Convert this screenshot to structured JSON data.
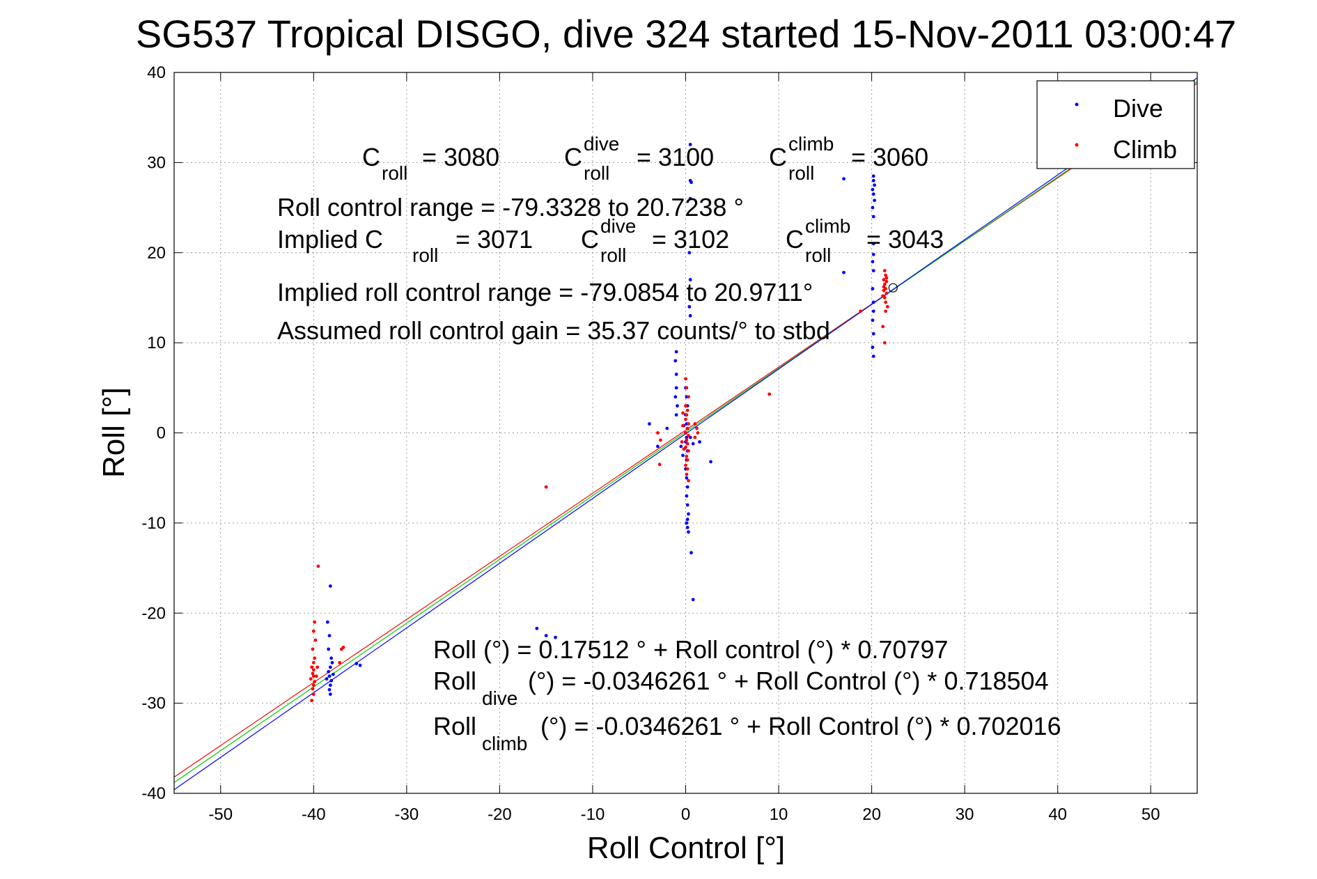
{
  "chart_data": {
    "type": "scatter",
    "title": "SG537 Tropical DISGO, dive 324 started 15-Nov-2011 03:00:47",
    "xlabel": "Roll Control [°]",
    "ylabel": "Roll [°]",
    "xlim": [
      -55,
      55
    ],
    "ylim": [
      -40,
      40
    ],
    "xticks": [
      -50,
      -40,
      -30,
      -20,
      -10,
      0,
      10,
      20,
      30,
      40,
      50
    ],
    "yticks": [
      -40,
      -30,
      -20,
      -10,
      0,
      10,
      20,
      30,
      40
    ],
    "grid": true,
    "legend_position": "top-right",
    "legend": [
      {
        "label": "Dive",
        "color": "#0000ff"
      },
      {
        "label": "Climb",
        "color": "#ff0000"
      }
    ],
    "series": [
      {
        "name": "Dive",
        "color": "#0000ff",
        "points": [
          [
            -38.2,
            -17
          ],
          [
            -38.5,
            -21
          ],
          [
            -38.3,
            -22.5
          ],
          [
            -38.4,
            -24
          ],
          [
            -38.1,
            -25
          ],
          [
            -38.0,
            -25.5
          ],
          [
            -38.2,
            -26
          ],
          [
            -38.4,
            -26.5
          ],
          [
            -38.3,
            -27
          ],
          [
            -38.1,
            -27.5
          ],
          [
            -38.2,
            -28
          ],
          [
            -38.3,
            -28.5
          ],
          [
            -38.2,
            -29
          ],
          [
            -37.9,
            -26.8
          ],
          [
            -38.6,
            -27.3
          ],
          [
            -35.4,
            -25.6
          ],
          [
            -35.0,
            -25.8
          ],
          [
            -16.0,
            -21.7
          ],
          [
            -15.0,
            -22.5
          ],
          [
            -14.0,
            -22.7
          ],
          [
            -3.9,
            1.0
          ],
          [
            -3.0,
            -1.5
          ],
          [
            -2.0,
            0.5
          ],
          [
            2.7,
            -3.2
          ],
          [
            1.5,
            -1.0
          ],
          [
            0.5,
            32
          ],
          [
            0.5,
            28
          ],
          [
            0.6,
            27.8
          ],
          [
            0.5,
            26
          ],
          [
            0.4,
            20
          ],
          [
            0.5,
            17
          ],
          [
            0.4,
            14
          ],
          [
            0.5,
            13
          ],
          [
            -1.0,
            9
          ],
          [
            -1.1,
            8
          ],
          [
            -1.0,
            6.5
          ],
          [
            -1.0,
            5
          ],
          [
            -1.1,
            4
          ],
          [
            -0.9,
            3
          ],
          [
            -1.0,
            2
          ],
          [
            0.0,
            5
          ],
          [
            0.1,
            4
          ],
          [
            0.2,
            3
          ],
          [
            0.0,
            2
          ],
          [
            0.1,
            1
          ],
          [
            0.0,
            0
          ],
          [
            0.1,
            -0.5
          ],
          [
            0.0,
            -1
          ],
          [
            0.2,
            -2
          ],
          [
            0.1,
            -3
          ],
          [
            0.0,
            -4
          ],
          [
            0.1,
            -5
          ],
          [
            0.2,
            -6
          ],
          [
            0.1,
            -7
          ],
          [
            0.2,
            -8
          ],
          [
            0.3,
            -9
          ],
          [
            0.2,
            -9.6
          ],
          [
            0.1,
            -10
          ],
          [
            0.2,
            -10.5
          ],
          [
            0.3,
            -11
          ],
          [
            0.6,
            -13.3
          ],
          [
            0.8,
            -18.5
          ],
          [
            -0.5,
            -1.5
          ],
          [
            -0.3,
            -2.5
          ],
          [
            0.5,
            -0.5
          ],
          [
            0.8,
            -1.2
          ],
          [
            -0.2,
            0.8
          ],
          [
            17.0,
            28.2
          ],
          [
            17.0,
            17.8
          ],
          [
            20.2,
            28.5
          ],
          [
            20.2,
            28
          ],
          [
            20.3,
            27.5
          ],
          [
            20.1,
            27
          ],
          [
            20.2,
            26.5
          ],
          [
            20.3,
            25.8
          ],
          [
            20.1,
            25
          ],
          [
            20.2,
            24
          ],
          [
            20.2,
            21
          ],
          [
            20.2,
            19.8
          ],
          [
            20.1,
            19
          ],
          [
            20.2,
            18
          ],
          [
            20.1,
            16
          ],
          [
            20.2,
            14.5
          ],
          [
            20.2,
            13.5
          ],
          [
            20.1,
            12.5
          ],
          [
            20.2,
            11
          ],
          [
            20.1,
            9.5
          ],
          [
            20.2,
            8.5
          ]
        ]
      },
      {
        "name": "Climb",
        "color": "#ff0000",
        "points": [
          [
            -39.5,
            -14.8
          ],
          [
            -39.9,
            -21
          ],
          [
            -40.0,
            -22
          ],
          [
            -39.8,
            -23
          ],
          [
            -40.1,
            -24
          ],
          [
            -39.9,
            -25
          ],
          [
            -40.0,
            -25.5
          ],
          [
            -40.2,
            -26
          ],
          [
            -40.0,
            -26.3
          ],
          [
            -40.1,
            -26.7
          ],
          [
            -40.0,
            -27
          ],
          [
            -40.3,
            -27.3
          ],
          [
            -39.9,
            -27.6
          ],
          [
            -40.0,
            -28
          ],
          [
            -40.1,
            -28.4
          ],
          [
            -40.0,
            -29
          ],
          [
            -40.2,
            -29.7
          ],
          [
            -39.7,
            -27
          ],
          [
            -39.6,
            -26
          ],
          [
            -37.0,
            -24
          ],
          [
            -36.8,
            -23.8
          ],
          [
            -37.2,
            -25.5
          ],
          [
            -15.0,
            -6
          ],
          [
            -3.0,
            0
          ],
          [
            -2.7,
            -0.8
          ],
          [
            -2.8,
            -3.5
          ],
          [
            9.0,
            4.3
          ],
          [
            1.0,
            1.0
          ],
          [
            1.2,
            0.5
          ],
          [
            1.0,
            -0.5
          ],
          [
            1.3,
            0
          ],
          [
            0.0,
            6
          ],
          [
            0.1,
            5
          ],
          [
            0.3,
            4
          ],
          [
            0.0,
            3
          ],
          [
            0.2,
            2.5
          ],
          [
            0.1,
            2
          ],
          [
            0.0,
            1.5
          ],
          [
            0.3,
            1
          ],
          [
            0.2,
            0.5
          ],
          [
            0.0,
            0
          ],
          [
            0.3,
            -0.3
          ],
          [
            0.1,
            -0.8
          ],
          [
            0.2,
            -1.2
          ],
          [
            0.0,
            -1.6
          ],
          [
            0.3,
            -2
          ],
          [
            0.1,
            -2.6
          ],
          [
            0.2,
            -3
          ],
          [
            0.0,
            -3.6
          ],
          [
            0.2,
            -4
          ],
          [
            0.1,
            -4.6
          ],
          [
            0.3,
            -5.3
          ],
          [
            -0.3,
            0.8
          ],
          [
            -0.4,
            -1
          ],
          [
            -0.2,
            -1.8
          ],
          [
            -0.3,
            2.2
          ],
          [
            21.4,
            18
          ],
          [
            21.5,
            17.5
          ],
          [
            21.3,
            17
          ],
          [
            21.6,
            16.8
          ],
          [
            21.4,
            16.5
          ],
          [
            21.5,
            16
          ],
          [
            21.3,
            15.8
          ],
          [
            21.6,
            15.5
          ],
          [
            21.4,
            15
          ],
          [
            21.5,
            14.5
          ],
          [
            21.7,
            14
          ],
          [
            21.3,
            16.2
          ],
          [
            21.6,
            17.2
          ],
          [
            21.2,
            15.2
          ],
          [
            21.5,
            13.5
          ],
          [
            21.2,
            11.8
          ],
          [
            21.4,
            10
          ],
          [
            18.8,
            13.5
          ]
        ]
      }
    ],
    "fit_lines": [
      {
        "color": "#ff0000",
        "points": [
          [
            -55,
            -38.2
          ],
          [
            55,
            38.8
          ]
        ]
      },
      {
        "color": "#00cc00",
        "points": [
          [
            -55,
            -38.8
          ],
          [
            55,
            39.0
          ]
        ]
      },
      {
        "color": "#0000ff",
        "points": [
          [
            -55,
            -39.6
          ],
          [
            55,
            39.4
          ]
        ]
      }
    ],
    "marker_point": [
      22.3,
      16.1
    ],
    "annotations": {
      "c_roll": "C",
      "c_roll_sub": "roll",
      "c_roll_val": "= 3080",
      "c_dive_sup": "dive",
      "c_dive_val": "= 3100",
      "c_climb_sup": "climb",
      "c_climb_val": "= 3060",
      "range_line": "Roll control range = -79.3328 to 20.7238 °",
      "implied_prefix": "Implied C",
      "implied_val": "= 3071",
      "implied_dive_val": "= 3102",
      "implied_climb_val": "= 3043",
      "implied_range": "Implied roll control range = -79.0854 to 20.9711°",
      "gain_line": "Assumed roll control gain = 35.37 counts/° to stbd",
      "eq1": "Roll (°) = 0.17512 ° + Roll control (°) * 0.70797",
      "eq2_roll": "Roll",
      "eq2_sub": "dive",
      "eq2_rest": "(°) = -0.0346261 ° + Roll Control (°) * 0.718504",
      "eq3_roll": "Roll",
      "eq3_sub": "climb",
      "eq3_rest": "(°) = -0.0346261 ° + Roll Control (°) * 0.702016"
    }
  }
}
